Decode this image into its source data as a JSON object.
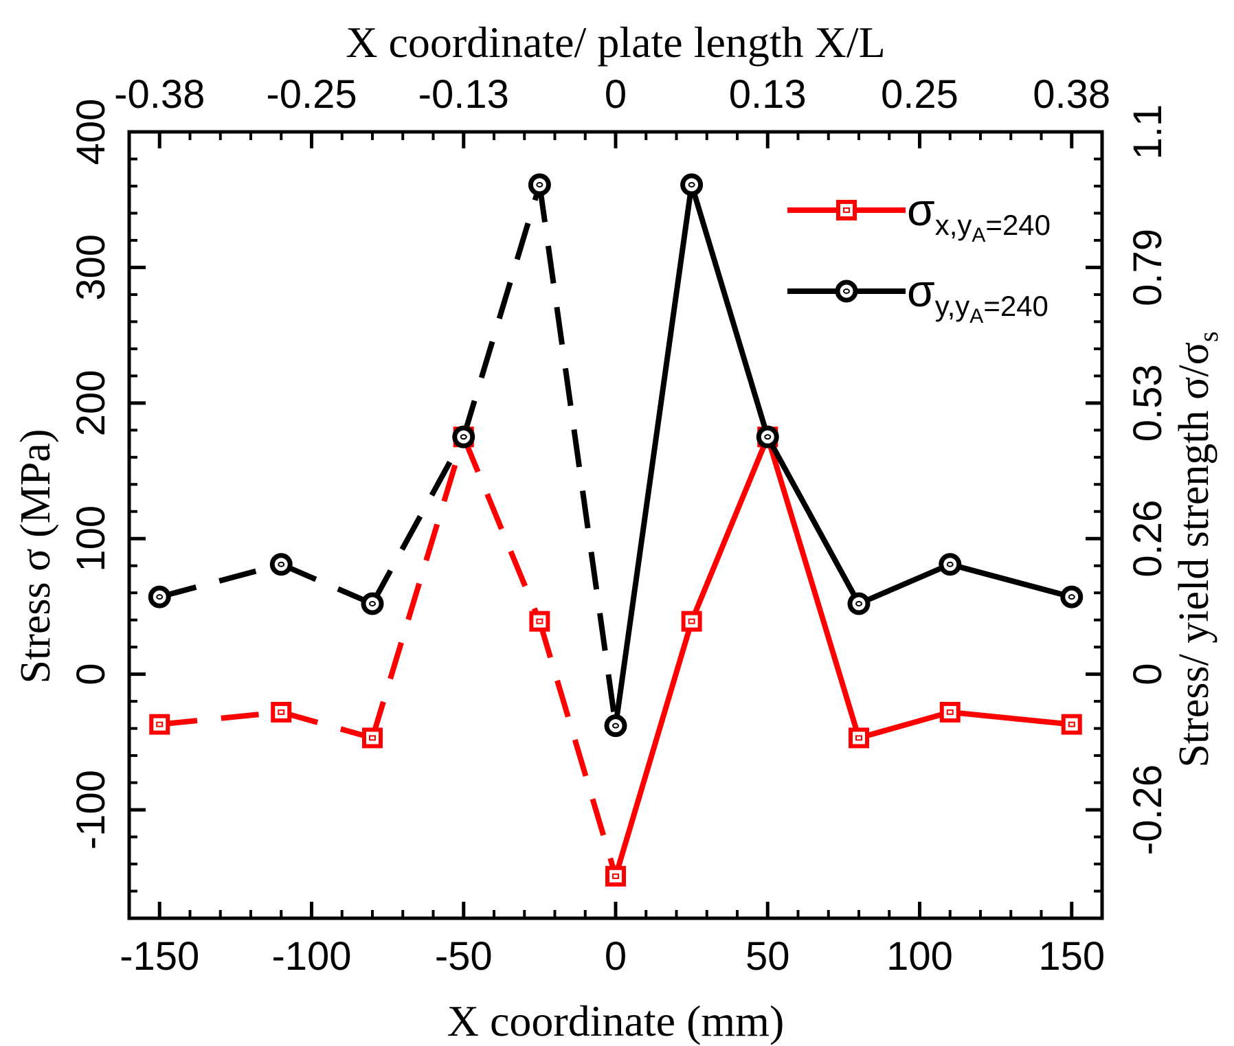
{
  "chart_data": {
    "type": "line",
    "x": [
      -150,
      -110,
      -80,
      -50,
      -25,
      0,
      25,
      50,
      80,
      110,
      150
    ],
    "series": [
      {
        "name": "σx,yA=240",
        "legend": {
          "sym": "σ",
          "sub1": "x,y",
          "sub2": "A",
          "suffix": "=240"
        },
        "color": "#ff0000",
        "marker": "square",
        "values": [
          -37,
          -28,
          -47,
          175,
          39,
          -149,
          39,
          175,
          -47,
          -28,
          -37
        ]
      },
      {
        "name": "σy,yA=240",
        "legend": {
          "sym": "σ",
          "sub1": "y,y",
          "sub2": "A",
          "suffix": "=240"
        },
        "color": "#000000",
        "marker": "circle",
        "values": [
          57,
          81,
          52,
          175,
          361,
          -38,
          361,
          175,
          52,
          81,
          57
        ]
      }
    ],
    "dashed_until_x": 0,
    "xlim": [
      -160,
      160
    ],
    "ylim": [
      -180,
      400
    ],
    "xticks": [
      -150,
      -100,
      -50,
      0,
      50,
      100,
      150
    ],
    "xtick_labels": [
      "-150",
      "-100",
      "-50",
      "0",
      "50",
      "100",
      "150"
    ],
    "yticks": [
      -100,
      0,
      100,
      200,
      300,
      400
    ],
    "ytick_labels": [
      "-100",
      "0",
      "100",
      "200",
      "300",
      "400"
    ],
    "top_ticks": [
      -150,
      -100,
      -50,
      0,
      50,
      100,
      150
    ],
    "top_tick_labels": [
      "-0.38",
      "-0.25",
      "-0.13",
      "0",
      "0.13",
      "0.25",
      "0.38"
    ],
    "right_ticks": [
      -100,
      0,
      100,
      200,
      300,
      400
    ],
    "right_tick_labels": [
      "-0.26",
      "0",
      "0.26",
      "0.53",
      "0.79",
      "1.1"
    ],
    "xlabel": "X coordinate (mm)",
    "ylabel": "Stress σ (MPa)",
    "top_xlabel": "X coordinate/ plate length X/L",
    "right_ylabel": "Stress/ yield strength σ/σ",
    "right_ylabel_sub": "s",
    "legend_position": "top-right"
  }
}
